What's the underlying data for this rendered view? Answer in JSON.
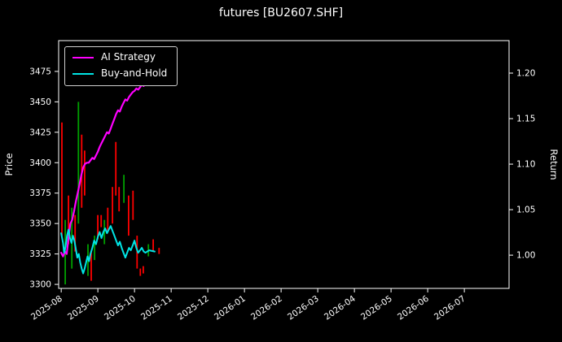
{
  "title": "futures [BU2607.SHF]",
  "legend": {
    "items": [
      {
        "label": "AI Strategy",
        "color": "#ff00ff"
      },
      {
        "label": "Buy-and-Hold",
        "color": "#00e5e5"
      }
    ]
  },
  "chart_data": {
    "type": "line",
    "title": "futures [BU2607.SHF]",
    "grid": false,
    "legend_position": "upper-left",
    "x_tick_labels": [
      "2025-08",
      "2025-09",
      "2025-10",
      "2025-11",
      "2025-12",
      "2026-01",
      "2026-02",
      "2026-03",
      "2026-04",
      "2026-05",
      "2026-06",
      "2026-07"
    ],
    "x_range": [
      -0.07,
      12.22
    ],
    "left_axis": {
      "label": "Price",
      "ticks": [
        3300,
        3325,
        3350,
        3375,
        3400,
        3425,
        3450,
        3475
      ],
      "range": [
        3296.7,
        3500.3
      ]
    },
    "right_axis": {
      "label": "Return",
      "ticks": [
        1.0,
        1.05,
        1.1,
        1.15,
        1.2
      ],
      "range": [
        0.9635,
        1.2357
      ]
    },
    "series": [
      {
        "name": "AI Strategy",
        "color": "#ff00ff",
        "axis": "left",
        "width": 2.2,
        "points": [
          [
            0.0,
            3326
          ],
          [
            0.05,
            3323
          ],
          [
            0.1,
            3327
          ],
          [
            0.15,
            3325
          ],
          [
            0.2,
            3338
          ],
          [
            0.25,
            3350
          ],
          [
            0.3,
            3353
          ],
          [
            0.35,
            3360
          ],
          [
            0.4,
            3368
          ],
          [
            0.45,
            3375
          ],
          [
            0.5,
            3382
          ],
          [
            0.55,
            3390
          ],
          [
            0.6,
            3396
          ],
          [
            0.65,
            3399
          ],
          [
            0.7,
            3400
          ],
          [
            0.75,
            3400
          ],
          [
            0.8,
            3402
          ],
          [
            0.85,
            3404
          ],
          [
            0.9,
            3403
          ],
          [
            0.95,
            3406
          ],
          [
            1.0,
            3409
          ],
          [
            1.05,
            3413
          ],
          [
            1.1,
            3416
          ],
          [
            1.15,
            3419
          ],
          [
            1.2,
            3422
          ],
          [
            1.25,
            3425
          ],
          [
            1.3,
            3424
          ],
          [
            1.35,
            3428
          ],
          [
            1.4,
            3432
          ],
          [
            1.45,
            3436
          ],
          [
            1.5,
            3440
          ],
          [
            1.55,
            3443
          ],
          [
            1.6,
            3442
          ],
          [
            1.65,
            3446
          ],
          [
            1.7,
            3449
          ],
          [
            1.75,
            3452
          ],
          [
            1.8,
            3451
          ],
          [
            1.85,
            3454
          ],
          [
            1.9,
            3456
          ],
          [
            1.95,
            3458
          ],
          [
            2.0,
            3459
          ],
          [
            2.05,
            3461
          ],
          [
            2.1,
            3460
          ],
          [
            2.15,
            3462
          ],
          [
            2.2,
            3464
          ],
          [
            2.25,
            3463
          ],
          [
            2.3,
            3465
          ],
          [
            2.4,
            3466
          ]
        ]
      },
      {
        "name": "Buy-and-Hold",
        "color": "#00e5e5",
        "axis": "left",
        "width": 2,
        "points": [
          [
            0.0,
            3342
          ],
          [
            0.05,
            3334
          ],
          [
            0.08,
            3326
          ],
          [
            0.12,
            3331
          ],
          [
            0.16,
            3340
          ],
          [
            0.2,
            3345
          ],
          [
            0.24,
            3338
          ],
          [
            0.28,
            3334
          ],
          [
            0.32,
            3340
          ],
          [
            0.36,
            3336
          ],
          [
            0.4,
            3329
          ],
          [
            0.44,
            3322
          ],
          [
            0.48,
            3325
          ],
          [
            0.52,
            3318
          ],
          [
            0.56,
            3313
          ],
          [
            0.6,
            3309
          ],
          [
            0.64,
            3313
          ],
          [
            0.68,
            3318
          ],
          [
            0.72,
            3323
          ],
          [
            0.76,
            3319
          ],
          [
            0.8,
            3325
          ],
          [
            0.85,
            3330
          ],
          [
            0.9,
            3336
          ],
          [
            0.95,
            3333
          ],
          [
            1.0,
            3339
          ],
          [
            1.05,
            3343
          ],
          [
            1.1,
            3338
          ],
          [
            1.15,
            3343
          ],
          [
            1.2,
            3346
          ],
          [
            1.25,
            3342
          ],
          [
            1.3,
            3345
          ],
          [
            1.35,
            3348
          ],
          [
            1.4,
            3344
          ],
          [
            1.45,
            3340
          ],
          [
            1.5,
            3336
          ],
          [
            1.55,
            3332
          ],
          [
            1.6,
            3335
          ],
          [
            1.65,
            3330
          ],
          [
            1.7,
            3326
          ],
          [
            1.75,
            3322
          ],
          [
            1.8,
            3326
          ],
          [
            1.85,
            3330
          ],
          [
            1.9,
            3328
          ],
          [
            1.95,
            3332
          ],
          [
            2.0,
            3336
          ],
          [
            2.05,
            3330
          ],
          [
            2.1,
            3326
          ],
          [
            2.15,
            3328
          ],
          [
            2.2,
            3330
          ],
          [
            2.25,
            3327
          ],
          [
            2.3,
            3326
          ],
          [
            2.4,
            3328
          ],
          [
            2.55,
            3327
          ]
        ]
      }
    ],
    "candle_colors": {
      "red": "#ff0000",
      "green": "#00a000"
    },
    "candles": [
      [
        0.02,
        3340,
        3433,
        "red"
      ],
      [
        0.11,
        3300,
        3353,
        "green"
      ],
      [
        0.2,
        3333,
        3373,
        "red"
      ],
      [
        0.29,
        3313,
        3363,
        "green"
      ],
      [
        0.38,
        3327,
        3357,
        "red"
      ],
      [
        0.47,
        3350,
        3450,
        "green"
      ],
      [
        0.56,
        3363,
        3423,
        "red"
      ],
      [
        0.64,
        3373,
        3410,
        "red"
      ],
      [
        0.73,
        3307,
        3333,
        "green"
      ],
      [
        0.82,
        3303,
        3327,
        "red"
      ],
      [
        0.91,
        3320,
        3340,
        "green"
      ],
      [
        1.0,
        3337,
        3357,
        "red"
      ],
      [
        1.09,
        3347,
        3357,
        "red"
      ],
      [
        1.18,
        3333,
        3353,
        "green"
      ],
      [
        1.27,
        3343,
        3363,
        "red"
      ],
      [
        1.4,
        3350,
        3380,
        "red"
      ],
      [
        1.49,
        3373,
        3417,
        "red"
      ],
      [
        1.58,
        3360,
        3380,
        "red"
      ],
      [
        1.71,
        3367,
        3390,
        "green"
      ],
      [
        1.84,
        3340,
        3373,
        "red"
      ],
      [
        1.96,
        3353,
        3377,
        "red"
      ],
      [
        2.07,
        3313,
        3340,
        "red"
      ],
      [
        2.16,
        3307,
        3313,
        "red"
      ],
      [
        2.24,
        3309,
        3315,
        "red"
      ],
      [
        2.38,
        3323,
        3333,
        "green"
      ],
      [
        2.51,
        3327,
        3337,
        "red"
      ],
      [
        2.67,
        3325,
        3330,
        "red"
      ]
    ]
  }
}
